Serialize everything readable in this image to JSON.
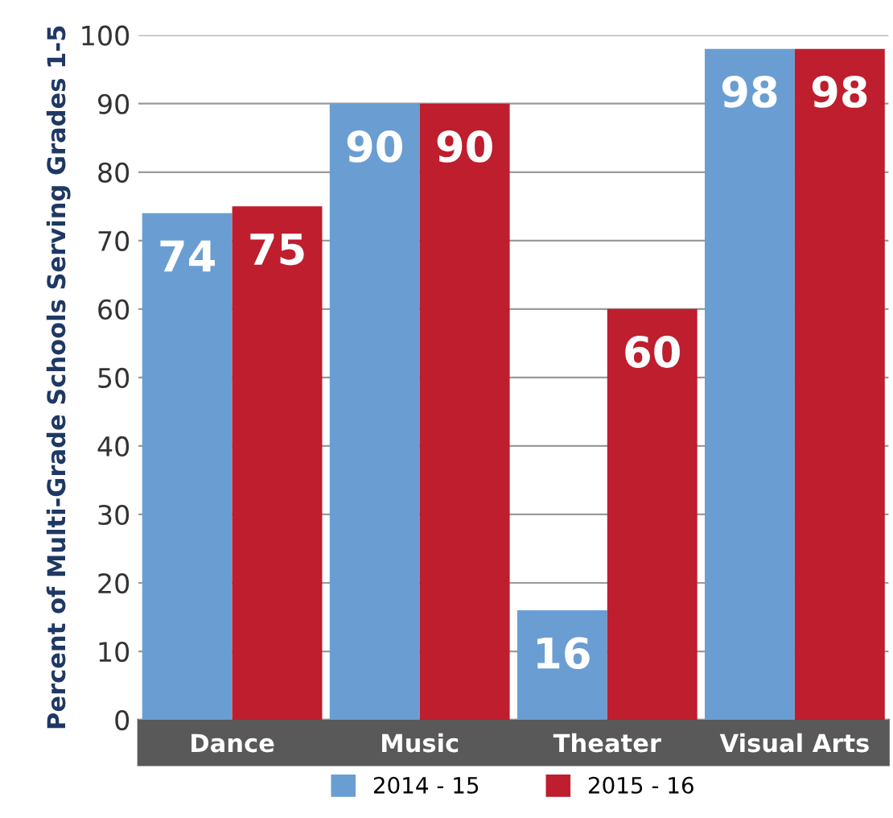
{
  "chart_data": {
    "type": "bar",
    "ylabel": "Percent of Multi-Grade Schools Serving Grades 1-5",
    "categories": [
      "Dance",
      "Music",
      "Theater",
      "Visual Arts"
    ],
    "series": [
      {
        "name": "2014 - 15",
        "color": "#6a9ed2",
        "values": [
          74,
          90,
          16,
          98
        ]
      },
      {
        "name": "2015 - 16",
        "color": "#be1e2d",
        "values": [
          75,
          90,
          60,
          98
        ]
      }
    ],
    "ylim": [
      0,
      100
    ],
    "yticks": [
      0,
      10,
      20,
      30,
      40,
      50,
      60,
      70,
      80,
      90,
      100
    ],
    "grid": "y",
    "legend": "bottom",
    "data_labels": true
  }
}
